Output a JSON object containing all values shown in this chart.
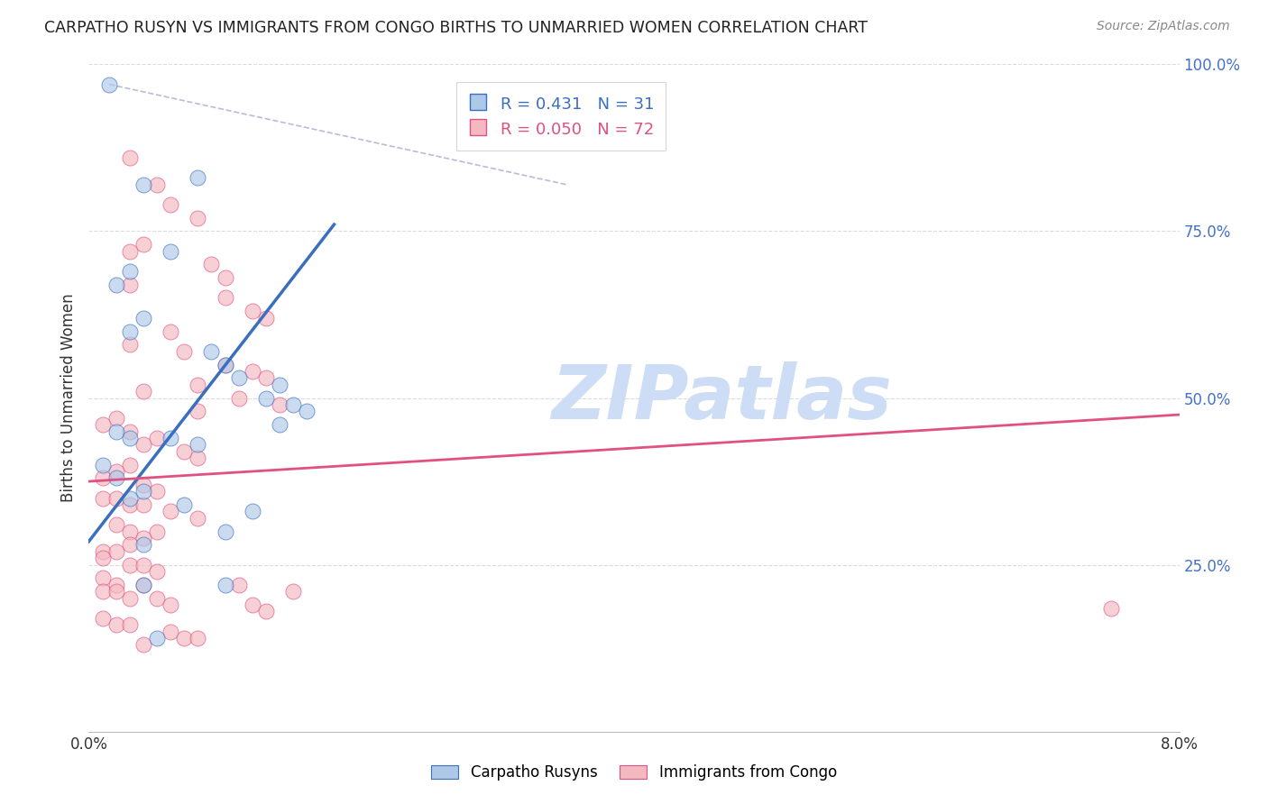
{
  "title": "CARPATHO RUSYN VS IMMIGRANTS FROM CONGO BIRTHS TO UNMARRIED WOMEN CORRELATION CHART",
  "source": "Source: ZipAtlas.com",
  "ylabel": "Births to Unmarried Women",
  "legend_label1": "Carpatho Rusyns",
  "legend_label2": "Immigrants from Congo",
  "R1": 0.431,
  "N1": 31,
  "R2": 0.05,
  "N2": 72,
  "color1": "#aec8e8",
  "color2": "#f4b8c1",
  "trendline1_color": "#3a6fbf",
  "trendline2_color": "#e05080",
  "background": "#ffffff",
  "grid_color": "#cccccc",
  "xmin": 0.0,
  "xmax": 0.08,
  "ymin": 0.0,
  "ymax": 1.0,
  "ytick_positions": [
    0.25,
    0.5,
    0.75,
    1.0
  ],
  "ytick_labels": [
    "25.0%",
    "50.0%",
    "75.0%",
    "100.0%"
  ],
  "blue_points": [
    [
      0.0015,
      0.97
    ],
    [
      0.008,
      0.83
    ],
    [
      0.004,
      0.82
    ],
    [
      0.006,
      0.72
    ],
    [
      0.003,
      0.69
    ],
    [
      0.002,
      0.67
    ],
    [
      0.004,
      0.62
    ],
    [
      0.003,
      0.6
    ],
    [
      0.009,
      0.57
    ],
    [
      0.01,
      0.55
    ],
    [
      0.011,
      0.53
    ],
    [
      0.014,
      0.52
    ],
    [
      0.013,
      0.5
    ],
    [
      0.015,
      0.49
    ],
    [
      0.016,
      0.48
    ],
    [
      0.014,
      0.46
    ],
    [
      0.002,
      0.45
    ],
    [
      0.003,
      0.44
    ],
    [
      0.006,
      0.44
    ],
    [
      0.008,
      0.43
    ],
    [
      0.001,
      0.4
    ],
    [
      0.002,
      0.38
    ],
    [
      0.004,
      0.36
    ],
    [
      0.003,
      0.35
    ],
    [
      0.007,
      0.34
    ],
    [
      0.012,
      0.33
    ],
    [
      0.01,
      0.3
    ],
    [
      0.004,
      0.28
    ],
    [
      0.01,
      0.22
    ],
    [
      0.004,
      0.22
    ],
    [
      0.005,
      0.14
    ]
  ],
  "pink_points": [
    [
      0.003,
      0.86
    ],
    [
      0.005,
      0.82
    ],
    [
      0.006,
      0.79
    ],
    [
      0.008,
      0.77
    ],
    [
      0.004,
      0.73
    ],
    [
      0.003,
      0.72
    ],
    [
      0.009,
      0.7
    ],
    [
      0.01,
      0.68
    ],
    [
      0.003,
      0.67
    ],
    [
      0.01,
      0.65
    ],
    [
      0.012,
      0.63
    ],
    [
      0.013,
      0.62
    ],
    [
      0.006,
      0.6
    ],
    [
      0.003,
      0.58
    ],
    [
      0.007,
      0.57
    ],
    [
      0.01,
      0.55
    ],
    [
      0.012,
      0.54
    ],
    [
      0.013,
      0.53
    ],
    [
      0.008,
      0.52
    ],
    [
      0.004,
      0.51
    ],
    [
      0.011,
      0.5
    ],
    [
      0.014,
      0.49
    ],
    [
      0.008,
      0.48
    ],
    [
      0.002,
      0.47
    ],
    [
      0.001,
      0.46
    ],
    [
      0.003,
      0.45
    ],
    [
      0.005,
      0.44
    ],
    [
      0.004,
      0.43
    ],
    [
      0.007,
      0.42
    ],
    [
      0.008,
      0.41
    ],
    [
      0.003,
      0.4
    ],
    [
      0.002,
      0.39
    ],
    [
      0.001,
      0.38
    ],
    [
      0.004,
      0.37
    ],
    [
      0.005,
      0.36
    ],
    [
      0.001,
      0.35
    ],
    [
      0.002,
      0.35
    ],
    [
      0.003,
      0.34
    ],
    [
      0.004,
      0.34
    ],
    [
      0.006,
      0.33
    ],
    [
      0.008,
      0.32
    ],
    [
      0.002,
      0.31
    ],
    [
      0.003,
      0.3
    ],
    [
      0.005,
      0.3
    ],
    [
      0.004,
      0.29
    ],
    [
      0.003,
      0.28
    ],
    [
      0.001,
      0.27
    ],
    [
      0.002,
      0.27
    ],
    [
      0.001,
      0.26
    ],
    [
      0.003,
      0.25
    ],
    [
      0.004,
      0.25
    ],
    [
      0.005,
      0.24
    ],
    [
      0.001,
      0.23
    ],
    [
      0.002,
      0.22
    ],
    [
      0.004,
      0.22
    ],
    [
      0.001,
      0.21
    ],
    [
      0.002,
      0.21
    ],
    [
      0.003,
      0.2
    ],
    [
      0.005,
      0.2
    ],
    [
      0.006,
      0.19
    ],
    [
      0.012,
      0.19
    ],
    [
      0.013,
      0.18
    ],
    [
      0.001,
      0.17
    ],
    [
      0.002,
      0.16
    ],
    [
      0.003,
      0.16
    ],
    [
      0.006,
      0.15
    ],
    [
      0.007,
      0.14
    ],
    [
      0.008,
      0.14
    ],
    [
      0.004,
      0.13
    ],
    [
      0.075,
      0.185
    ],
    [
      0.011,
      0.22
    ],
    [
      0.015,
      0.21
    ]
  ],
  "trendline1_x": [
    0.0,
    0.018
  ],
  "trendline1_y": [
    0.285,
    0.76
  ],
  "trendline2_x": [
    0.0,
    0.08
  ],
  "trendline2_y": [
    0.375,
    0.475
  ],
  "diag_line_x": [
    0.0015,
    0.035
  ],
  "diag_line_y": [
    0.97,
    0.82
  ],
  "watermark_text": "ZIPatlas",
  "watermark_color": "#ccddf5",
  "watermark_size": 60
}
